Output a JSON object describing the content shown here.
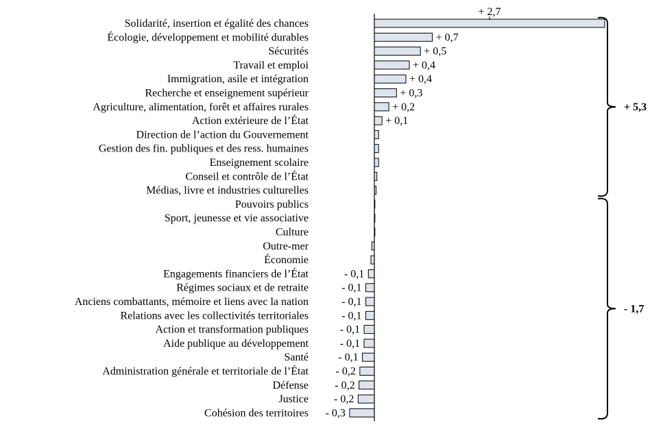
{
  "chart_data": {
    "type": "bar",
    "orientation": "horizontal",
    "bar_color": "#dde4ee",
    "categories": [
      "Solidarité, insertion et égalité des chances",
      "Écologie, développement et mobilité durables",
      "Sécurités",
      "Travail et emploi",
      "Immigration, asile et intégration",
      "Recherche et enseignement supérieur",
      "Agriculture, alimentation, forêt et affaires rurales",
      "Action extérieure de l’État",
      "Direction de l’action du Gouvernement",
      "Gestion des fin. publiques et des ress. humaines",
      "Enseignement scolaire",
      "Conseil et contrôle de l’État",
      "Médias, livre et industries culturelles",
      "Pouvoirs publics",
      "Sport, jeunesse et vie associative",
      "Culture",
      "Outre-mer",
      "Économie",
      "Engagements financiers de l’État",
      "Régimes sociaux et de retraite",
      "Anciens combattants, mémoire et liens avec la nation",
      "Relations avec les collectivités territoriales",
      "Action et transformation publiques",
      "Aide publique au développement",
      "Santé",
      "Administration générale et territoriale de l’État",
      "Défense",
      "Justice",
      "Cohésion des territoires"
    ],
    "values": [
      2.7,
      0.68,
      0.54,
      0.41,
      0.37,
      0.26,
      0.17,
      0.09,
      0.05,
      0.05,
      0.05,
      0.03,
      0.02,
      0.005,
      0.002,
      0.002,
      -0.03,
      -0.04,
      -0.07,
      -0.1,
      -0.1,
      -0.1,
      -0.12,
      -0.12,
      -0.14,
      -0.17,
      -0.18,
      -0.19,
      -0.29
    ],
    "data_labels": [
      "+ 2,7",
      "+ 0,7",
      "+ 0,5",
      "+ 0,4",
      "+ 0,4",
      "+ 0,3",
      "+ 0,2",
      "+ 0,1",
      "",
      "",
      "",
      "",
      "",
      "",
      "",
      "",
      "",
      "",
      "- 0,1",
      "- 0,1",
      "- 0,1",
      "- 0,1",
      "- 0,1",
      "- 0,1",
      "- 0,1",
      "- 0,2",
      "- 0,2",
      "- 0,2",
      "- 0,3"
    ],
    "group_totals": [
      {
        "label": "+ 5,3",
        "from": 0,
        "to": 12
      },
      {
        "label": "- 1,7",
        "from": 13,
        "to": 28
      }
    ]
  }
}
